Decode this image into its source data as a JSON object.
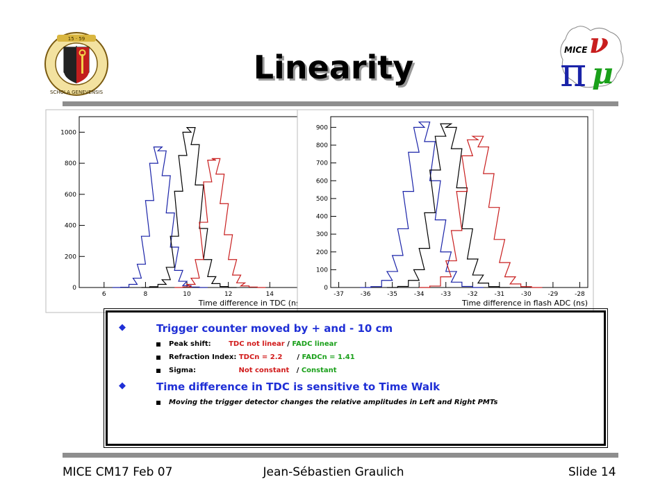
{
  "title": "Linearity",
  "logos": {
    "left_text": "SCHOLA GENEVENSIS",
    "left_years": "15 · 59",
    "right_text": "MICE"
  },
  "chart_data": [
    {
      "type": "line",
      "xlabel": "Time difference in TDC (ns)",
      "ylabel": "",
      "xlim": [
        4.8,
        15.6
      ],
      "ylim": [
        0,
        1100
      ],
      "xticks": [
        6,
        8,
        10,
        12,
        14
      ],
      "yticks": [
        0,
        200,
        400,
        600,
        800,
        1000
      ],
      "series": [
        {
          "color": "#1a23a8",
          "x": [
            6.6,
            7.0,
            7.4,
            7.6,
            7.8,
            8.0,
            8.2,
            8.4,
            8.6,
            8.8,
            9.0,
            9.2,
            9.4,
            9.6,
            9.8,
            10.0,
            10.4,
            10.8
          ],
          "values": [
            0,
            2,
            20,
            60,
            150,
            330,
            560,
            800,
            905,
            880,
            720,
            480,
            260,
            110,
            40,
            12,
            3,
            0
          ]
        },
        {
          "color": "#000000",
          "x": [
            8.0,
            8.4,
            8.8,
            9.0,
            9.2,
            9.4,
            9.6,
            9.8,
            10.0,
            10.2,
            10.4,
            10.6,
            10.8,
            11.0,
            11.2,
            11.4,
            11.8,
            12.2
          ],
          "values": [
            0,
            5,
            20,
            50,
            130,
            330,
            620,
            850,
            1000,
            1030,
            920,
            660,
            380,
            180,
            70,
            25,
            6,
            0
          ]
        },
        {
          "color": "#c81e1e",
          "x": [
            9.6,
            10.0,
            10.2,
            10.4,
            10.6,
            10.8,
            11.0,
            11.2,
            11.4,
            11.6,
            11.8,
            12.0,
            12.2,
            12.4,
            12.6,
            12.8,
            13.2,
            13.6
          ],
          "values": [
            0,
            4,
            20,
            60,
            180,
            420,
            680,
            820,
            830,
            730,
            540,
            340,
            180,
            80,
            30,
            10,
            3,
            0
          ]
        }
      ]
    },
    {
      "type": "line",
      "xlabel": "Time difference in flash ADC (ns)",
      "ylabel": "",
      "xlim": [
        -37.3,
        -27.7
      ],
      "ylim": [
        0,
        960
      ],
      "xticks": [
        -37,
        -36,
        -35,
        -34,
        -33,
        -32,
        -31,
        -30,
        -29,
        -28
      ],
      "yticks": [
        0,
        100,
        200,
        300,
        400,
        500,
        600,
        700,
        800,
        900
      ],
      "series": [
        {
          "color": "#1a23a8",
          "x": [
            -36.0,
            -35.6,
            -35.2,
            -35.0,
            -34.8,
            -34.6,
            -34.4,
            -34.2,
            -34.0,
            -33.8,
            -33.6,
            -33.4,
            -33.2,
            -33.0,
            -32.8,
            -32.6,
            -32.2,
            -31.8
          ],
          "values": [
            0,
            5,
            40,
            90,
            180,
            330,
            540,
            760,
            900,
            930,
            820,
            600,
            380,
            200,
            90,
            30,
            6,
            0
          ]
        },
        {
          "color": "#000000",
          "x": [
            -35.0,
            -34.6,
            -34.2,
            -34.0,
            -33.8,
            -33.6,
            -33.4,
            -33.2,
            -33.0,
            -32.8,
            -32.6,
            -32.4,
            -32.2,
            -32.0,
            -31.8,
            -31.6,
            -31.2,
            -30.8
          ],
          "values": [
            0,
            6,
            40,
            100,
            220,
            420,
            660,
            850,
            920,
            900,
            780,
            560,
            330,
            160,
            70,
            25,
            5,
            0
          ]
        },
        {
          "color": "#c81e1e",
          "x": [
            -33.8,
            -33.4,
            -33.0,
            -32.8,
            -32.6,
            -32.4,
            -32.2,
            -32.0,
            -31.8,
            -31.6,
            -31.4,
            -31.2,
            -31.0,
            -30.8,
            -30.6,
            -30.4,
            -30.0,
            -29.6
          ],
          "values": [
            0,
            8,
            60,
            150,
            320,
            540,
            740,
            830,
            850,
            790,
            640,
            450,
            270,
            140,
            60,
            20,
            5,
            0
          ]
        }
      ]
    }
  ],
  "bullets": [
    {
      "text": "Trigger counter moved by + and - 10 cm",
      "items": [
        {
          "label": "Peak shift:",
          "v1": "TDC not linear",
          "sep": " / ",
          "v2": "FADC linear"
        },
        {
          "label": "Refraction Index:",
          "v1": "TDCn = 2.2",
          "sep": "      / ",
          "v2": "FADCn = 1.41"
        },
        {
          "label": "Sigma:",
          "v1": "Not constant",
          "sep": "   / ",
          "v2": "Constant"
        }
      ]
    },
    {
      "text": "Time difference in TDC is sensitive to Time Walk",
      "items": [
        {
          "text": "Moving the trigger detector changes the relative amplitudes in Left and Right PMTs"
        }
      ]
    }
  ],
  "footer": {
    "left": "MICE CM17 Feb 07",
    "center": "Jean-Sébastien Graulich",
    "right": "Slide 14"
  },
  "colors": {
    "bullet_blue": "#1f2fd6",
    "red": "#d11a1a",
    "green": "#1aa01a",
    "rule_gray": "#8e8e8e"
  }
}
